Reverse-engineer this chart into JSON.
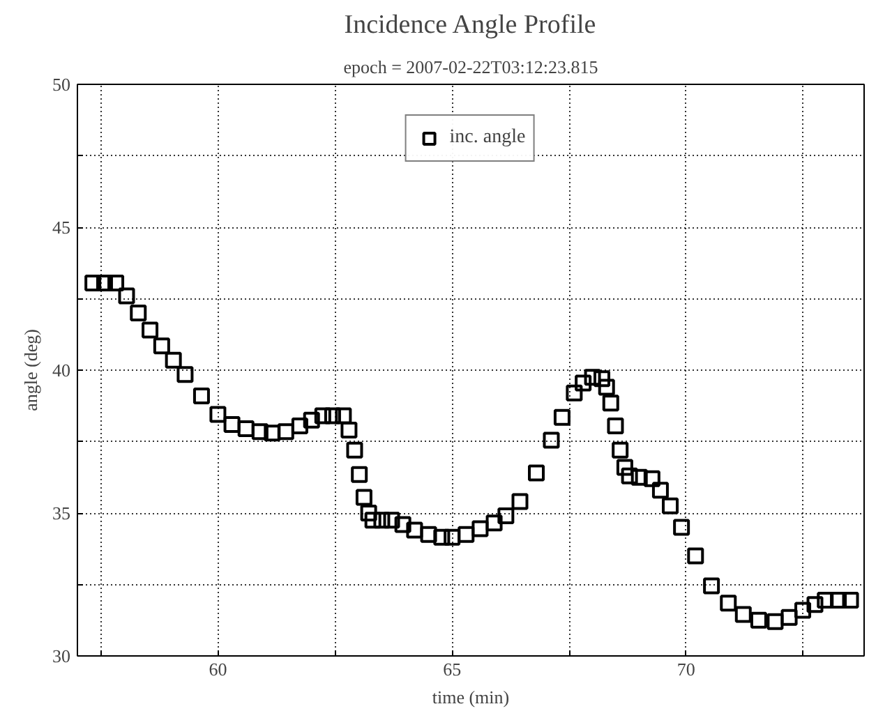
{
  "chart_data": {
    "type": "scatter",
    "title": "Incidence Angle Profile",
    "subtitle": "epoch = 2007-02-22T03:12:23.815",
    "xlabel": "time (min)",
    "ylabel": "angle (deg)",
    "series": [
      {
        "name": "inc. angle",
        "color": "#000000",
        "x": [
          57.33,
          57.58,
          57.82,
          58.05,
          58.3,
          58.55,
          58.8,
          59.05,
          59.3,
          59.65,
          60.0,
          60.3,
          60.6,
          60.9,
          61.16,
          61.45,
          61.75,
          62.0,
          62.24,
          62.45,
          62.68,
          62.8,
          62.92,
          63.02,
          63.12,
          63.22,
          63.31,
          63.5,
          63.71,
          63.95,
          64.2,
          64.5,
          64.78,
          65.0,
          65.3,
          65.6,
          65.9,
          66.15,
          66.45,
          66.8,
          67.12,
          67.35,
          67.61,
          67.8,
          68.0,
          68.2,
          68.3,
          68.39,
          68.49,
          68.59,
          68.69,
          68.79,
          69.0,
          69.27,
          69.45,
          69.66,
          69.9,
          70.2,
          70.54,
          70.9,
          71.22,
          71.55,
          71.9,
          72.2,
          72.49,
          72.75,
          72.97,
          73.25,
          73.51
        ],
        "values": [
          43.05,
          43.05,
          43.05,
          42.6,
          42.0,
          41.4,
          40.85,
          40.35,
          39.85,
          39.1,
          38.45,
          38.1,
          37.95,
          37.85,
          37.8,
          37.85,
          38.05,
          38.25,
          38.4,
          38.4,
          38.4,
          37.9,
          37.2,
          36.35,
          35.55,
          35.0,
          34.75,
          34.75,
          34.75,
          34.6,
          34.4,
          34.25,
          34.15,
          34.15,
          34.25,
          34.45,
          34.65,
          34.9,
          35.4,
          36.4,
          37.55,
          38.35,
          39.2,
          39.55,
          39.75,
          39.7,
          39.4,
          38.85,
          38.05,
          37.2,
          36.6,
          36.3,
          36.25,
          36.2,
          35.8,
          35.25,
          34.5,
          33.5,
          32.45,
          31.85,
          31.45,
          31.25,
          31.2,
          31.35,
          31.6,
          31.8,
          31.95,
          31.95,
          31.95
        ]
      }
    ],
    "xlim": [
      57.0,
      73.8
    ],
    "ylim": [
      30,
      50
    ],
    "xticks": [
      {
        "value": 57.5,
        "label": null
      },
      60,
      {
        "value": 62.5,
        "label": null
      },
      65,
      {
        "value": 67.5,
        "label": null
      },
      70,
      {
        "value": 72.5,
        "label": null
      }
    ],
    "yticks": [
      30,
      {
        "value": 32.5,
        "label": null
      },
      35,
      {
        "value": 37.5,
        "label": null
      },
      40,
      {
        "value": 42.5,
        "label": null
      },
      45,
      {
        "value": 47.5,
        "label": null
      },
      50
    ],
    "grid": true,
    "legend": "top",
    "marker": "square"
  }
}
